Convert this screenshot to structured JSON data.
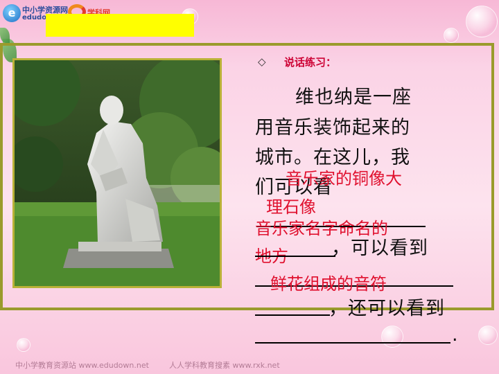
{
  "header": {
    "logo_badge": "e",
    "logo_name": "中小学资源网",
    "logo_domain": "edudown",
    "logo2_name": "学科网"
  },
  "photo": {
    "icon": "statue-photo"
  },
  "content": {
    "bullet_symbol": "◇",
    "heading": "说话练习：",
    "lines": [
      "维也纳是一座",
      "用音乐装饰起来的",
      "城市。在这儿，我",
      "们可以看"
    ],
    "seg_see": "，可以看到",
    "seg_also": "，还可以看到",
    "period": "."
  },
  "answers": {
    "answer1_a": "音乐家的铜像大",
    "answer1_b": "理石像",
    "answer2_a": "音乐家名字命名的",
    "answer2_b": "地方",
    "answer3": "鲜花组成的音符"
  },
  "footer": {
    "left": "中小学教育资源站 www.edudown.net",
    "right": "人人学科教育搜素 www.rxk.net"
  },
  "colors": {
    "accent_red": "#e0102e",
    "frame_olive": "#9a9b2c",
    "highlight_yellow": "#ffff00"
  }
}
